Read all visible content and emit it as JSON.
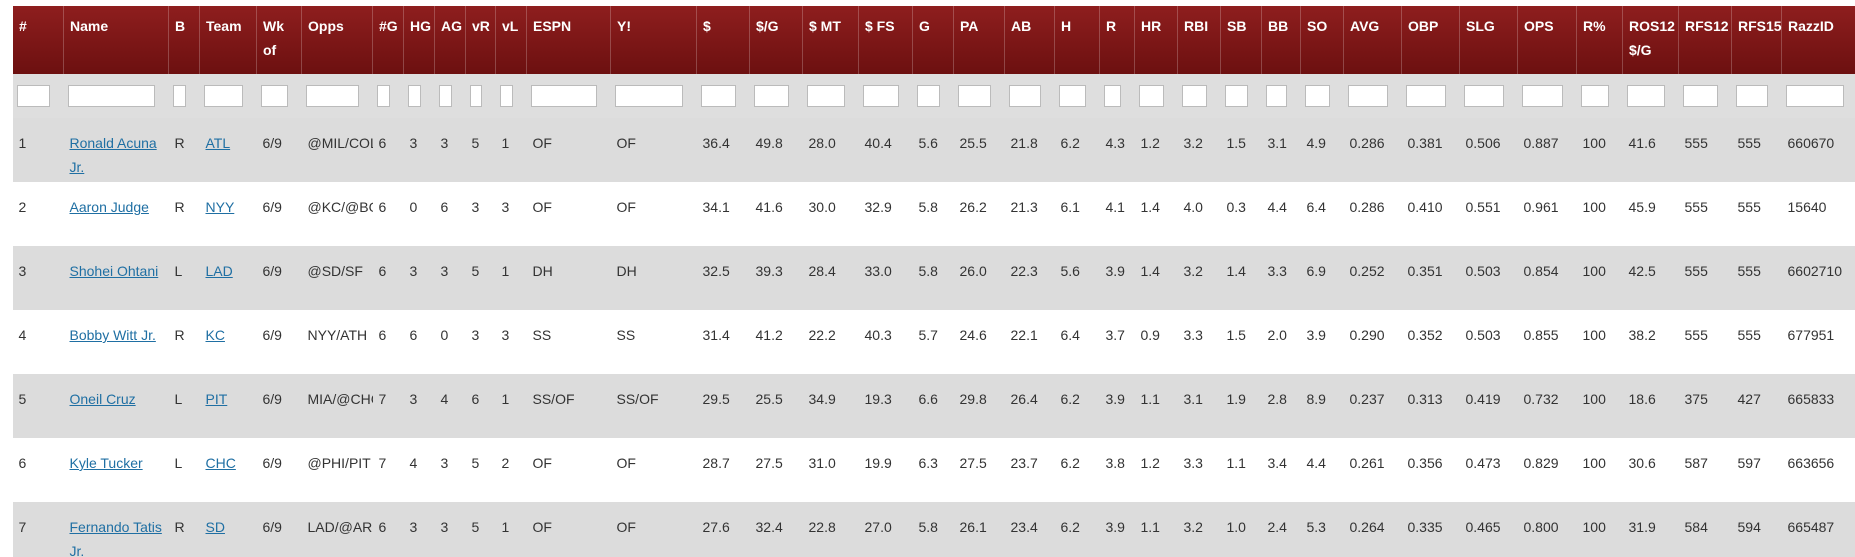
{
  "table": {
    "headers": [
      "#",
      "Name",
      "B",
      "Team",
      "Wk of",
      "Opps",
      "#G",
      "HG",
      "AG",
      "vR",
      "vL",
      "ESPN",
      "Y!",
      "$",
      "$/G",
      "$ MT",
      "$ FS",
      "G",
      "PA",
      "AB",
      "H",
      "R",
      "HR",
      "RBI",
      "SB",
      "BB",
      "SO",
      "AVG",
      "OBP",
      "SLG",
      "OPS",
      "R%",
      "ROS12 $/G",
      "RFS12",
      "RFS15",
      "RazzID"
    ],
    "rows": [
      [
        "1",
        "Ronald Acuna Jr.",
        "R",
        "ATL",
        "6/9",
        "@MIL/COL",
        "6",
        "3",
        "3",
        "5",
        "1",
        "OF",
        "OF",
        "36.4",
        "49.8",
        "28.0",
        "40.4",
        "5.6",
        "25.5",
        "21.8",
        "6.2",
        "4.3",
        "1.2",
        "3.2",
        "1.5",
        "3.1",
        "4.9",
        "0.286",
        "0.381",
        "0.506",
        "0.887",
        "100",
        "41.6",
        "555",
        "555",
        "660670"
      ],
      [
        "2",
        "Aaron Judge",
        "R",
        "NYY",
        "6/9",
        "@KC/@BOS",
        "6",
        "0",
        "6",
        "3",
        "3",
        "OF",
        "OF",
        "34.1",
        "41.6",
        "30.0",
        "32.9",
        "5.8",
        "26.2",
        "21.3",
        "6.1",
        "4.1",
        "1.4",
        "4.0",
        "0.3",
        "4.4",
        "6.4",
        "0.286",
        "0.410",
        "0.551",
        "0.961",
        "100",
        "45.9",
        "555",
        "555",
        "15640"
      ],
      [
        "3",
        "Shohei Ohtani",
        "L",
        "LAD",
        "6/9",
        "@SD/SF",
        "6",
        "3",
        "3",
        "5",
        "1",
        "DH",
        "DH",
        "32.5",
        "39.3",
        "28.4",
        "33.0",
        "5.8",
        "26.0",
        "22.3",
        "5.6",
        "3.9",
        "1.4",
        "3.2",
        "1.4",
        "3.3",
        "6.9",
        "0.252",
        "0.351",
        "0.503",
        "0.854",
        "100",
        "42.5",
        "555",
        "555",
        "6602710"
      ],
      [
        "4",
        "Bobby Witt Jr.",
        "R",
        "KC",
        "6/9",
        "NYY/ATH",
        "6",
        "6",
        "0",
        "3",
        "3",
        "SS",
        "SS",
        "31.4",
        "41.2",
        "22.2",
        "40.3",
        "5.7",
        "24.6",
        "22.1",
        "6.4",
        "3.7",
        "0.9",
        "3.3",
        "1.5",
        "2.0",
        "3.9",
        "0.290",
        "0.352",
        "0.503",
        "0.855",
        "100",
        "38.2",
        "555",
        "555",
        "677951"
      ],
      [
        "5",
        "Oneil Cruz",
        "L",
        "PIT",
        "6/9",
        "MIA/@CHC",
        "7",
        "3",
        "4",
        "6",
        "1",
        "SS/OF",
        "SS/OF",
        "29.5",
        "25.5",
        "34.9",
        "19.3",
        "6.6",
        "29.8",
        "26.4",
        "6.2",
        "3.9",
        "1.1",
        "3.1",
        "1.9",
        "2.8",
        "8.9",
        "0.237",
        "0.313",
        "0.419",
        "0.732",
        "100",
        "18.6",
        "375",
        "427",
        "665833"
      ],
      [
        "6",
        "Kyle Tucker",
        "L",
        "CHC",
        "6/9",
        "@PHI/PIT",
        "7",
        "4",
        "3",
        "5",
        "2",
        "OF",
        "OF",
        "28.7",
        "27.5",
        "31.0",
        "19.9",
        "6.3",
        "27.5",
        "23.7",
        "6.2",
        "3.8",
        "1.2",
        "3.3",
        "1.1",
        "3.4",
        "4.4",
        "0.261",
        "0.356",
        "0.473",
        "0.829",
        "100",
        "30.6",
        "587",
        "597",
        "663656"
      ],
      [
        "7",
        "Fernando Tatis Jr.",
        "R",
        "SD",
        "6/9",
        "LAD/@ARI",
        "6",
        "3",
        "3",
        "5",
        "1",
        "OF",
        "OF",
        "27.6",
        "32.4",
        "22.8",
        "27.0",
        "5.8",
        "26.1",
        "23.4",
        "6.2",
        "3.9",
        "1.1",
        "3.2",
        "1.0",
        "2.4",
        "5.3",
        "0.264",
        "0.335",
        "0.465",
        "0.800",
        "100",
        "31.9",
        "584",
        "594",
        "665487"
      ]
    ]
  }
}
